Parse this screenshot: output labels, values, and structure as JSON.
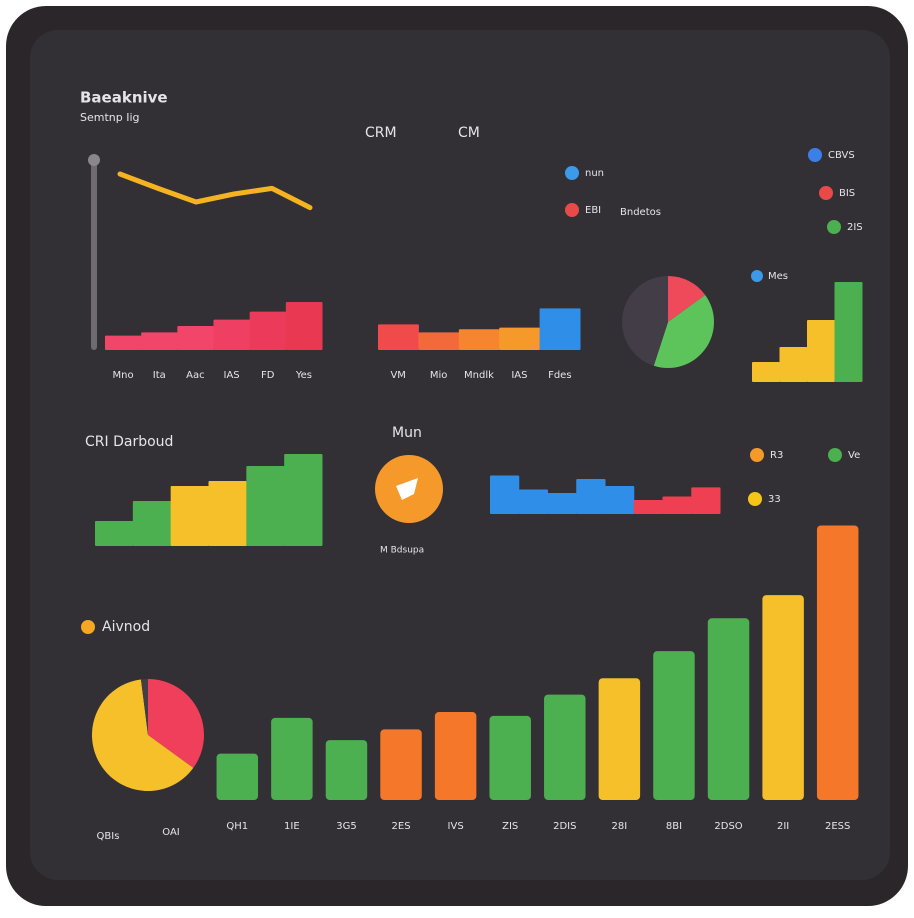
{
  "header": {
    "title": "Baeaknive",
    "subtitle": "Semtnp Iig"
  },
  "top_labels": [
    "CRM",
    "CM"
  ],
  "legends": [
    {
      "label": "nun",
      "color": "#3b9be8"
    },
    {
      "label": "EBI",
      "color": "#e84a4a"
    },
    {
      "label": "CBVS",
      "color": "#3b7fe8"
    },
    {
      "label": "BIS",
      "color": "#e84a4a"
    },
    {
      "label": "2IS",
      "color": "#4caf50"
    },
    {
      "label": "R3",
      "color": "#f59a2a"
    },
    {
      "label": "Ve",
      "color": "#4caf50"
    },
    {
      "label": "33",
      "color": "#f5c518"
    }
  ],
  "note": "Bndetos",
  "widget": {
    "title": "Mun",
    "caption": "M Bdsupa"
  },
  "chart_data": [
    {
      "type": "line",
      "values": [
        70,
        52,
        35,
        45,
        52,
        28
      ],
      "color": "#f5b41f",
      "ylim": [
        0,
        100
      ]
    },
    {
      "type": "bar",
      "categories": [
        "Mno",
        "Ita",
        "Aac",
        "IAS",
        "FD",
        "Yes"
      ],
      "values": [
        18,
        22,
        30,
        38,
        48,
        60
      ],
      "colors": [
        "#f2456a",
        "#f2456a",
        "#f2456a",
        "#ef3f62",
        "#ec3a5a",
        "#e83852"
      ],
      "ylim": [
        0,
        100
      ]
    },
    {
      "type": "bar",
      "categories": [
        "VM",
        "Mio",
        "Mndlk",
        "IAS",
        "Fdes"
      ],
      "values": [
        32,
        22,
        26,
        28,
        52
      ],
      "colors": [
        "#f04a4a",
        "#f26a3a",
        "#f5852f",
        "#f59a2a",
        "#2f8fe8"
      ],
      "ylim": [
        0,
        100
      ]
    },
    {
      "type": "pie",
      "values": [
        15,
        40,
        45
      ],
      "colors": [
        "#ef4a5a",
        "#5cc45a",
        "#423d46"
      ]
    },
    {
      "type": "bar",
      "legend": "Mes",
      "values": [
        20,
        35,
        62,
        100
      ],
      "colors": [
        "#f5c02a",
        "#f5c02a",
        "#f5c02a",
        "#4caf50"
      ],
      "ylim": [
        0,
        100
      ]
    },
    {
      "type": "bar",
      "title": "CRI Darboud",
      "values": [
        25,
        45,
        60,
        65,
        80,
        92
      ],
      "colors": [
        "#4caf50",
        "#4caf50",
        "#f5c02a",
        "#f5c02a",
        "#4caf50",
        "#4caf50"
      ],
      "ylim": [
        0,
        100
      ]
    },
    {
      "type": "bar",
      "values": [
        55,
        35,
        30,
        50,
        40,
        20,
        25,
        38
      ],
      "colors": [
        "#2f8fe8",
        "#2f8fe8",
        "#2f8fe8",
        "#2f8fe8",
        "#2f8fe8",
        "#ef3f52",
        "#ef3f52",
        "#ef3f52"
      ],
      "ylim": [
        0,
        100
      ]
    },
    {
      "type": "bar",
      "title": "Aivnod",
      "categories": [
        "QH1",
        "1IE",
        "3G5",
        "2ES",
        "IVS",
        "ZIS",
        "2DIS",
        "28I",
        "8BI",
        "2DSO",
        "2II",
        "2ESS"
      ],
      "values": [
        48,
        85,
        62,
        73,
        91,
        87,
        109,
        126,
        154,
        188,
        212,
        284
      ],
      "colors": [
        "#4caf50",
        "#4caf50",
        "#4caf50",
        "#f5782a",
        "#f5782a",
        "#4caf50",
        "#4caf50",
        "#f5c02a",
        "#4caf50",
        "#4caf50",
        "#f5c02a",
        "#f5782a"
      ],
      "ylim": [
        0,
        300
      ]
    },
    {
      "type": "pie",
      "values": [
        35,
        63,
        2
      ],
      "colors": [
        "#ef3f5a",
        "#f5c02a",
        "#423d46"
      ],
      "captions": [
        "QBIs",
        "OAI"
      ]
    }
  ]
}
